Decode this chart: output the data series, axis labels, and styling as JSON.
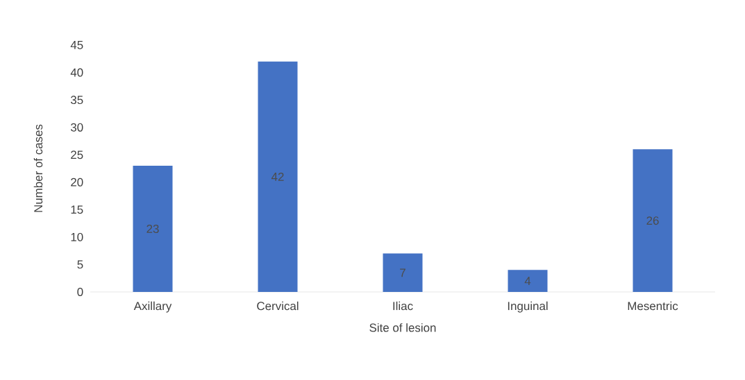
{
  "chart_data": {
    "type": "bar",
    "xlabel": "Site of lesion",
    "ylabel": "Number of cases",
    "categories": [
      "Axillary",
      "Cervical",
      "Iliac",
      "Inguinal",
      "Mesentric"
    ],
    "values": [
      23,
      42,
      7,
      4,
      26
    ],
    "color": "#4472c4",
    "ylim": [
      0,
      45
    ],
    "yticks": [
      0,
      5,
      10,
      15,
      20,
      25,
      30,
      35,
      40,
      45
    ],
    "data_labels": true
  }
}
